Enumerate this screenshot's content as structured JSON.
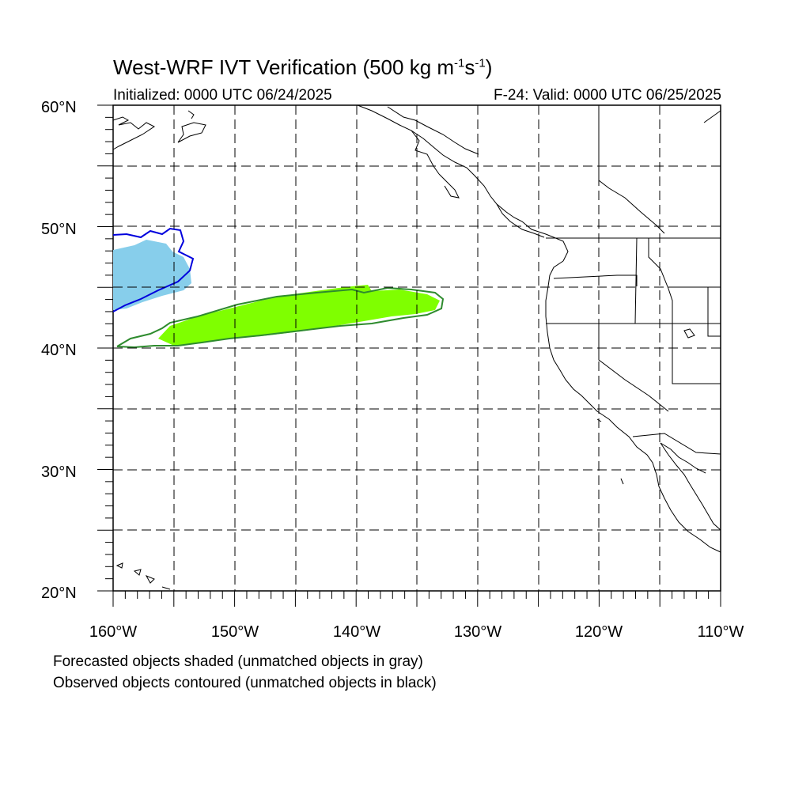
{
  "title": {
    "text": "West-WRF IVT Verification (500 kg m",
    "sup1": "-1",
    "mid": "s",
    "sup2": "-1",
    "end": ")"
  },
  "initialized": "Initialized: 0000 UTC 06/24/2025",
  "valid": "F-24: Valid: 0000 UTC 06/25/2025",
  "notes": {
    "forecast": "Forecasted objects shaded (unmatched objects in gray)",
    "observed": "Observed objects contoured (unmatched objects in black)"
  },
  "map": {
    "lon_range": [
      -160,
      -110
    ],
    "lat_range": [
      20,
      60
    ],
    "lat_labels": [
      "20°N",
      "30°N",
      "40°N",
      "50°N",
      "60°N"
    ],
    "lon_labels": [
      "160°W",
      "150°W",
      "140°W",
      "130°W",
      "120°W",
      "110°W"
    ],
    "grid": "dashed every 5°",
    "colors": {
      "forecast_object_1": "#87CEEB",
      "observed_contour_1": "#0000DD",
      "forecast_object_2": "#7FFF00",
      "observed_contour_2": "#2E8B2E",
      "coastline": "#000000"
    }
  }
}
